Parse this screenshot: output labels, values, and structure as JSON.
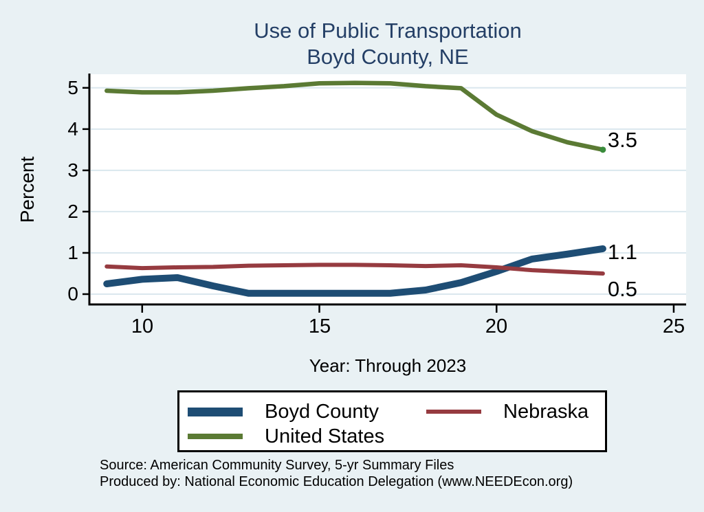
{
  "title": {
    "line1": "Use of Public Transportation",
    "line2": "Boyd County, NE"
  },
  "chart_data": {
    "type": "line",
    "title": "Use of Public Transportation Boyd County, NE",
    "xlabel": "Year: Through 2023",
    "ylabel": "Percent",
    "x": [
      9,
      10,
      11,
      12,
      13,
      14,
      15,
      16,
      17,
      18,
      19,
      20,
      21,
      22,
      23
    ],
    "series": [
      {
        "name": "Boyd County",
        "color": "#1e4d74",
        "stroke_width": 10,
        "values": [
          0.25,
          0.36,
          0.4,
          0.2,
          0.02,
          0.02,
          0.02,
          0.02,
          0.02,
          0.1,
          0.28,
          0.55,
          0.85,
          0.97,
          1.1
        ]
      },
      {
        "name": "Nebraska",
        "color": "#963b40",
        "stroke_width": 6,
        "values": [
          0.67,
          0.63,
          0.65,
          0.66,
          0.69,
          0.7,
          0.71,
          0.71,
          0.7,
          0.68,
          0.7,
          0.65,
          0.58,
          0.54,
          0.5
        ]
      },
      {
        "name": "United States",
        "color": "#5b7a34",
        "stroke_width": 6.5,
        "end_marker_color": "#3a8c3c",
        "values": [
          4.93,
          4.89,
          4.89,
          4.93,
          4.99,
          5.04,
          5.11,
          5.12,
          5.11,
          5.04,
          4.99,
          4.35,
          3.95,
          3.68,
          3.5
        ]
      }
    ],
    "end_labels": [
      {
        "text": "3.5",
        "series_index": 2,
        "dy": -14
      },
      {
        "text": "1.1",
        "series_index": 0,
        "dy": 5
      },
      {
        "text": "0.5",
        "series_index": 1,
        "dy": 23
      }
    ],
    "x_ticks": [
      10,
      15,
      20,
      25
    ],
    "y_ticks": [
      0,
      1,
      2,
      3,
      4,
      5
    ],
    "xlim": [
      8.51,
      25.35
    ],
    "ylim": [
      -0.25,
      5.33
    ],
    "grid": true,
    "legend_position": "bottom"
  },
  "legend": {
    "items": [
      {
        "label": "Boyd County",
        "color": "#1e4d74",
        "key_height": 13
      },
      {
        "label": "Nebraska",
        "color": "#963b40",
        "key_height": 6
      },
      {
        "label": "United States",
        "color": "#5b7a34",
        "key_height": 8
      }
    ]
  },
  "source": {
    "line1": "Source: American Community Survey, 5-yr Summary Files",
    "line2": "Produced by: National Economic Education Delegation (www.NEEDEcon.org)"
  },
  "colors": {
    "background": "#e9f1f4",
    "plot_background": "#ffffff",
    "gridline": "#dae7ee",
    "axis": "#000000",
    "title_text": "#243f66"
  }
}
